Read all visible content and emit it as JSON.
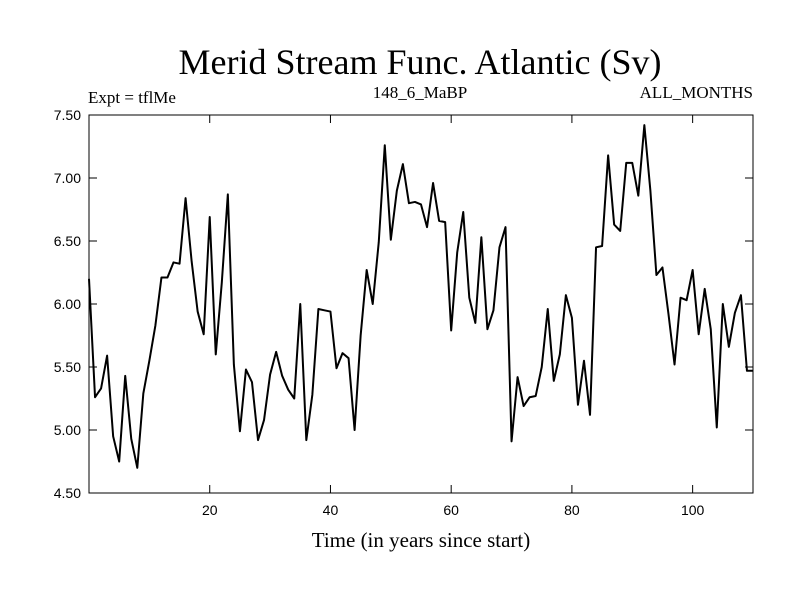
{
  "chart_data": {
    "type": "line",
    "title": "Merid Stream Func. Atlantic (Sv)",
    "subtitle_left": "Expt = tflMe",
    "subtitle_center": "148_6_MaBP",
    "subtitle_right": "ALL_MONTHS",
    "xlabel": "Time (in years since start)",
    "ylabel": "",
    "xlim": [
      0,
      110
    ],
    "ylim": [
      4.5,
      7.5
    ],
    "xticks": [
      20,
      40,
      60,
      80,
      100
    ],
    "yticks": [
      4.5,
      5.0,
      5.5,
      6.0,
      6.5,
      7.0,
      7.5
    ],
    "xtick_labels": [
      "20",
      "40",
      "60",
      "80",
      "100"
    ],
    "ytick_labels": [
      "4.50",
      "5.00",
      "5.50",
      "6.00",
      "6.50",
      "7.00",
      "7.50"
    ],
    "series": [
      {
        "name": "Merid Stream Func. Atlantic",
        "x": [
          0,
          1,
          2,
          3,
          4,
          5,
          6,
          7,
          8,
          9,
          10,
          11,
          12,
          13,
          14,
          15,
          16,
          17,
          18,
          19,
          20,
          21,
          22,
          23,
          24,
          25,
          26,
          27,
          28,
          29,
          30,
          31,
          32,
          33,
          34,
          35,
          36,
          37,
          38,
          39,
          40,
          41,
          42,
          43,
          44,
          45,
          46,
          47,
          48,
          49,
          50,
          51,
          52,
          53,
          54,
          55,
          56,
          57,
          58,
          59,
          60,
          61,
          62,
          63,
          64,
          65,
          66,
          67,
          68,
          69,
          70,
          71,
          72,
          73,
          74,
          75,
          76,
          77,
          78,
          79,
          80,
          81,
          82,
          83,
          84,
          85,
          86,
          87,
          88,
          89,
          90,
          91,
          92,
          93,
          94,
          95,
          96,
          97,
          98,
          99,
          100,
          101,
          102,
          103,
          104,
          105,
          106,
          107,
          108,
          109,
          110
        ],
        "values": [
          6.2,
          5.26,
          5.33,
          5.59,
          4.95,
          4.75,
          5.43,
          4.93,
          4.7,
          5.29,
          5.55,
          5.83,
          6.21,
          6.21,
          6.33,
          6.32,
          6.84,
          6.34,
          5.94,
          5.76,
          6.69,
          5.6,
          6.17,
          6.87,
          5.52,
          4.99,
          5.48,
          5.38,
          4.92,
          5.08,
          5.44,
          5.62,
          5.43,
          5.32,
          5.25,
          6.0,
          4.92,
          5.28,
          5.96,
          5.95,
          5.94,
          5.49,
          5.61,
          5.57,
          5.0,
          5.75,
          6.27,
          6.0,
          6.49,
          7.26,
          6.51,
          6.9,
          7.11,
          6.8,
          6.81,
          6.79,
          6.61,
          6.96,
          6.66,
          6.65,
          5.79,
          6.41,
          6.73,
          6.05,
          5.85,
          6.53,
          5.8,
          5.95,
          6.45,
          6.61,
          4.91,
          5.42,
          5.19,
          5.26,
          5.27,
          5.5,
          5.96,
          5.39,
          5.6,
          6.07,
          5.89,
          5.2,
          5.55,
          5.12,
          6.45,
          6.46,
          7.18,
          6.63,
          6.58,
          7.12,
          7.12,
          6.86,
          7.42,
          6.9,
          6.23,
          6.29,
          5.92,
          5.52,
          6.05,
          6.03,
          6.27,
          5.76,
          6.12,
          5.8,
          5.02,
          6.0,
          5.66,
          5.93,
          6.07,
          5.47,
          5.47
        ]
      }
    ]
  }
}
